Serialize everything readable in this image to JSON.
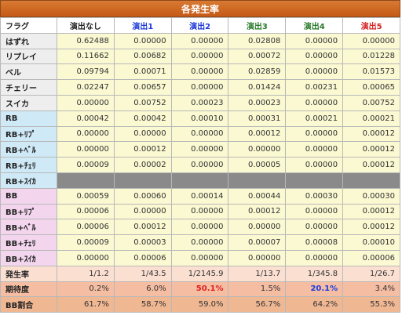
{
  "title": "各発生率",
  "header": {
    "flag": "フラグ",
    "cols": [
      "演出なし",
      "演出1",
      "演出2",
      "演出3",
      "演出4",
      "演出5"
    ]
  },
  "rows": [
    {
      "label": "はずれ",
      "group": "gray",
      "values": [
        "0.62488",
        "0.00000",
        "0.00000",
        "0.02808",
        "0.00000",
        "0.00000"
      ]
    },
    {
      "label": "リプレイ",
      "group": "gray",
      "values": [
        "0.11662",
        "0.00682",
        "0.00000",
        "0.00072",
        "0.00000",
        "0.01228"
      ]
    },
    {
      "label": "ベル",
      "group": "gray",
      "values": [
        "0.09794",
        "0.00071",
        "0.00000",
        "0.02859",
        "0.00000",
        "0.01573"
      ]
    },
    {
      "label": "チェリー",
      "group": "gray",
      "values": [
        "0.02247",
        "0.00657",
        "0.00000",
        "0.01424",
        "0.00231",
        "0.00065"
      ]
    },
    {
      "label": "スイカ",
      "group": "gray",
      "values": [
        "0.00000",
        "0.00752",
        "0.00023",
        "0.00023",
        "0.00000",
        "0.00752"
      ]
    },
    {
      "label": "RB",
      "group": "blue",
      "values": [
        "0.00042",
        "0.00042",
        "0.00010",
        "0.00031",
        "0.00021",
        "0.00021"
      ]
    },
    {
      "label": "RB+ﾘﾌﾟ",
      "group": "blue",
      "values": [
        "0.00000",
        "0.00000",
        "0.00000",
        "0.00012",
        "0.00000",
        "0.00012"
      ]
    },
    {
      "label": "RB+ﾍﾞﾙ",
      "group": "blue",
      "values": [
        "0.00000",
        "0.00012",
        "0.00000",
        "0.00000",
        "0.00000",
        "0.00012"
      ]
    },
    {
      "label": "RB+ﾁｪﾘ",
      "group": "blue",
      "values": [
        "0.00009",
        "0.00002",
        "0.00000",
        "0.00005",
        "0.00000",
        "0.00012"
      ]
    },
    {
      "label": "RB+ｽｲｶ",
      "group": "blue",
      "blank": true,
      "values": []
    },
    {
      "label": "BB",
      "group": "pink",
      "values": [
        "0.00059",
        "0.00060",
        "0.00014",
        "0.00044",
        "0.00030",
        "0.00030"
      ]
    },
    {
      "label": "BB+ﾘﾌﾟ",
      "group": "pink",
      "values": [
        "0.00006",
        "0.00000",
        "0.00000",
        "0.00012",
        "0.00000",
        "0.00012"
      ]
    },
    {
      "label": "BB+ﾍﾞﾙ",
      "group": "pink",
      "values": [
        "0.00006",
        "0.00012",
        "0.00000",
        "0.00000",
        "0.00000",
        "0.00012"
      ]
    },
    {
      "label": "BB+ﾁｪﾘ",
      "group": "pink",
      "values": [
        "0.00009",
        "0.00003",
        "0.00000",
        "0.00007",
        "0.00008",
        "0.00010"
      ]
    },
    {
      "label": "BB+ｽｲｶ",
      "group": "pink",
      "values": [
        "0.00000",
        "0.00006",
        "0.00000",
        "0.00000",
        "0.00000",
        "0.00006"
      ]
    }
  ],
  "summary": [
    {
      "key": "rate",
      "label": "発生率",
      "values": [
        "1/1.2",
        "1/43.5",
        "1/2145.9",
        "1/13.7",
        "1/345.8",
        "1/26.7"
      ]
    },
    {
      "key": "exp",
      "label": "期待度",
      "values": [
        "0.2%",
        "6.0%",
        "50.1%",
        "1.5%",
        "20.1%",
        "3.4%"
      ],
      "highlight": {
        "2": "red",
        "4": "blue"
      }
    },
    {
      "key": "bb",
      "label": "BB割合",
      "values": [
        "61.7%",
        "58.7%",
        "59.0%",
        "56.7%",
        "64.2%",
        "55.3%"
      ]
    }
  ],
  "colors": {
    "title_bg": "#c55a16",
    "gray_label": "#eeeeee",
    "blue_label": "#cfe9f7",
    "pink_label": "#f3d6ee",
    "value_bg": "#fbf9d2",
    "blank_fill": "#8a8a8a"
  }
}
